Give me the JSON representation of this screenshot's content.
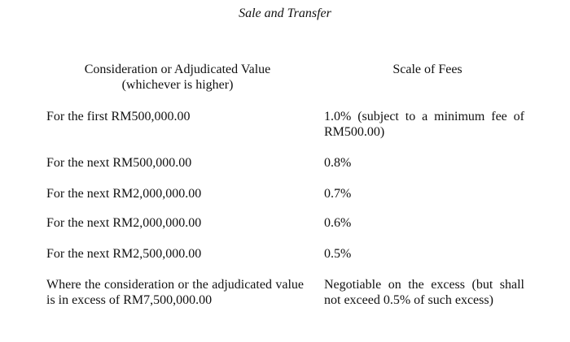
{
  "title": "Sale and Transfer",
  "table": {
    "header": [
      [
        "Consideration or Adjudicated Value",
        "(whichever is higher)"
      ],
      "Scale of Fees"
    ],
    "rows": [
      [
        "For the first RM500,000.00",
        "1.0% (subject to a minimum fee of RM500.00)"
      ],
      [
        "For the next RM500,000.00",
        "0.8%"
      ],
      [
        "For the next RM2,000,000.00",
        "0.7%"
      ],
      [
        "For the next RM2,000,000.00",
        "0.6%"
      ],
      [
        "For the next RM2,500,000.00",
        "0.5%"
      ],
      [
        "Where the consideration or the adjudicated value is in excess of RM7,500,000.00",
        "Negotiable on the excess (but shall not exceed 0.5% of such excess)"
      ]
    ]
  }
}
